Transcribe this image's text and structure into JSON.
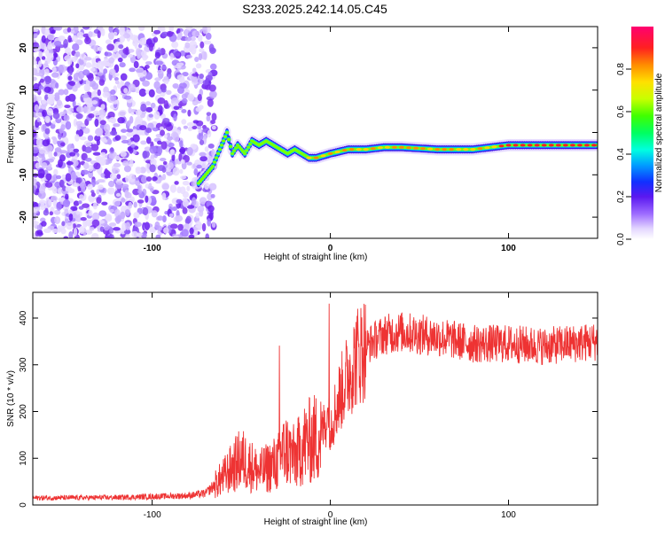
{
  "title": "S233.2025.242.14.05.C45",
  "chart_data": [
    {
      "type": "heatmap",
      "xlabel": "Height of straight line (km)",
      "ylabel": "Frequency (Hz)",
      "xlim": [
        -167,
        150
      ],
      "ylim": [
        -25,
        25
      ],
      "xticks": [
        -100,
        0,
        100
      ],
      "yticks": [
        -20,
        -10,
        0,
        10,
        20
      ],
      "colorbar": {
        "label": "Normalized spectral amplitude",
        "range": [
          0,
          1
        ],
        "ticks": [
          "0.0",
          "0.2",
          "0.4",
          "0.6",
          "0.8"
        ],
        "tick_values": [
          0.0,
          0.2,
          0.4,
          0.6,
          0.8
        ]
      },
      "ridge": {
        "x": [
          -74,
          -70,
          -66,
          -62,
          -58,
          -55,
          -52,
          -48,
          -44,
          -40,
          -36,
          -32,
          -28,
          -24,
          -20,
          -16,
          -12,
          -8,
          -4,
          0,
          10,
          20,
          30,
          40,
          60,
          80,
          100,
          120,
          150
        ],
        "y": [
          -12,
          -10,
          -8,
          -4,
          0,
          -5,
          -3,
          -5,
          -2,
          -3,
          -2,
          -3,
          -4,
          -5,
          -4,
          -5,
          -6,
          -6,
          -5.5,
          -5,
          -4,
          -4,
          -3.5,
          -3.5,
          -4,
          -4,
          -3,
          -3,
          -3
        ]
      }
    },
    {
      "type": "line",
      "xlabel": "Height of straight line (km)",
      "ylabel": "SNR (10 * v/v)",
      "xlim": [
        -167,
        150
      ],
      "ylim": [
        0,
        455
      ],
      "xticks": [
        -100,
        0,
        100
      ],
      "yticks": [
        0,
        100,
        200,
        300,
        400
      ],
      "color": "#ee3333",
      "envelope": {
        "x": [
          -167,
          -120,
          -80,
          -70,
          -60,
          -50,
          -40,
          -30,
          -25,
          -20,
          -15,
          -10,
          -5,
          -2,
          0,
          5,
          10,
          15,
          20,
          30,
          40,
          60,
          80,
          100,
          120,
          150
        ],
        "y": [
          15,
          16,
          20,
          25,
          60,
          100,
          70,
          90,
          120,
          100,
          130,
          140,
          150,
          190,
          170,
          230,
          280,
          320,
          340,
          365,
          370,
          360,
          345,
          345,
          340,
          350
        ]
      }
    }
  ]
}
